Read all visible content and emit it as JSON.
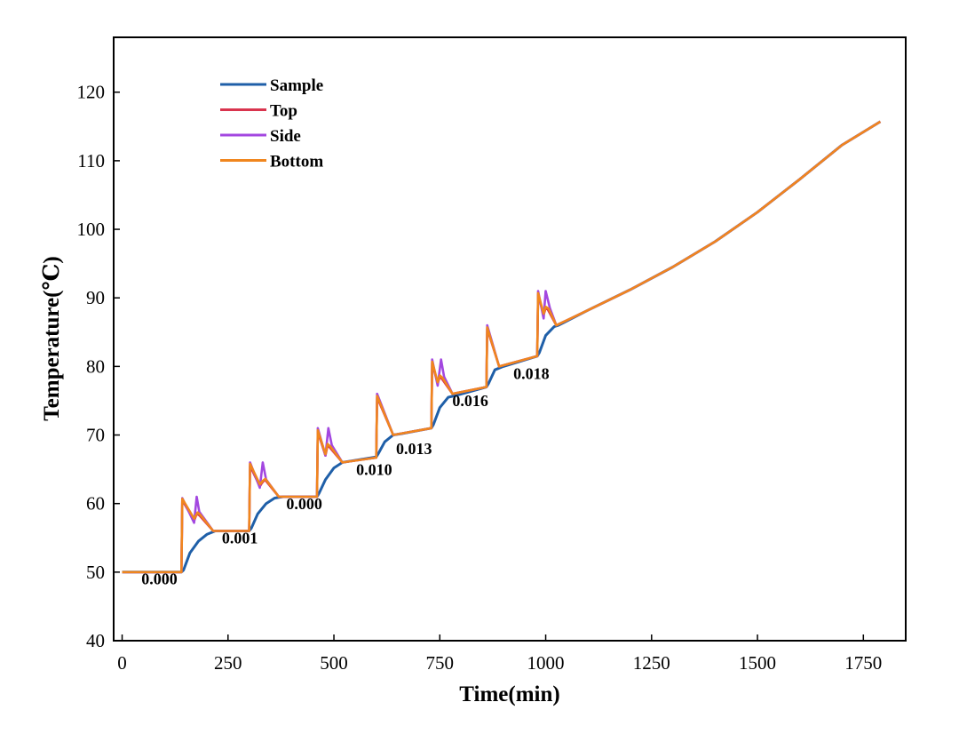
{
  "chart_data": {
    "type": "line",
    "title": "",
    "xlabel": "Time(min)",
    "ylabel": "Temperature(℃)",
    "xlim": [
      -20,
      1850
    ],
    "ylim": [
      40,
      128
    ],
    "x_ticks": [
      0,
      250,
      500,
      750,
      1000,
      1250,
      1500,
      1750
    ],
    "y_ticks": [
      40,
      50,
      60,
      70,
      80,
      90,
      100,
      110,
      120
    ],
    "grid": false,
    "legend_position": "top-left",
    "series": [
      {
        "name": "Sample",
        "color": "#1f5fa8",
        "x": [
          0,
          140,
          145,
          160,
          180,
          200,
          220,
          240,
          300,
          305,
          320,
          340,
          360,
          380,
          460,
          465,
          480,
          500,
          520,
          540,
          600,
          605,
          620,
          640,
          660,
          730,
          735,
          750,
          770,
          790,
          860,
          865,
          880,
          900,
          980,
          985,
          1000,
          1020,
          1030,
          1100,
          1200,
          1300,
          1400,
          1500,
          1600,
          1700,
          1790
        ],
        "y": [
          50,
          50,
          50.3,
          52.8,
          54.5,
          55.5,
          56,
          56,
          56,
          56.4,
          58.5,
          60,
          60.8,
          61,
          61,
          61.5,
          63.5,
          65.2,
          66,
          66.2,
          66.8,
          67.3,
          69,
          70,
          70.2,
          71,
          71.5,
          74,
          75.5,
          75.8,
          77,
          77.5,
          79.5,
          80,
          81.5,
          82,
          84.5,
          85.8,
          86,
          88.2,
          91.2,
          94.5,
          98.2,
          102.5,
          107.3,
          112.3,
          115.7
        ]
      },
      {
        "name": "Top",
        "color": "#d9344e",
        "x": [
          0,
          140,
          142,
          170,
          176,
          182,
          215,
          230,
          300,
          302,
          325,
          330,
          337,
          370,
          460,
          462,
          480,
          485,
          490,
          520,
          600,
          602,
          640,
          730,
          732,
          745,
          750,
          755,
          780,
          860,
          862,
          890,
          980,
          982,
          995,
          1000,
          1005,
          1025,
          1100,
          1200,
          1300,
          1400,
          1500,
          1600,
          1700,
          1790
        ],
        "y": [
          50,
          50,
          60.5,
          57.5,
          58.5,
          58.3,
          56,
          56,
          56,
          65.5,
          62.5,
          63,
          63.5,
          61,
          61,
          70.5,
          67,
          68.5,
          68.2,
          66,
          66.7,
          75.5,
          70,
          71,
          80.5,
          77.5,
          78.5,
          78.2,
          76,
          77,
          85.5,
          80,
          81.5,
          90.5,
          87.5,
          88.5,
          88.3,
          86,
          88.2,
          91.2,
          94.5,
          98.2,
          102.5,
          107.3,
          112.3,
          115.7
        ]
      },
      {
        "name": "Side",
        "color": "#a347e0",
        "x": [
          0,
          140,
          142,
          170,
          176,
          182,
          215,
          230,
          300,
          302,
          325,
          332,
          340,
          370,
          460,
          462,
          480,
          487,
          495,
          520,
          600,
          602,
          640,
          730,
          732,
          745,
          753,
          760,
          780,
          860,
          862,
          890,
          980,
          982,
          995,
          1000,
          1010,
          1025,
          1100,
          1200,
          1300,
          1400,
          1500,
          1600,
          1700,
          1790
        ],
        "y": [
          50,
          50,
          60.8,
          57.2,
          61,
          58.8,
          56,
          56,
          56,
          66,
          62.3,
          66,
          63.5,
          61,
          61,
          71,
          67,
          71,
          68.5,
          66,
          66.7,
          76,
          70,
          71,
          81,
          77.2,
          81,
          78.5,
          76,
          77,
          86,
          80,
          81.5,
          91,
          87,
          91,
          88.5,
          86,
          88.2,
          91.2,
          94.5,
          98.2,
          102.5,
          107.3,
          112.3,
          115.7
        ]
      },
      {
        "name": "Bottom",
        "color": "#f0861e",
        "x": [
          0,
          140,
          142,
          170,
          178,
          184,
          215,
          230,
          300,
          302,
          325,
          332,
          338,
          370,
          460,
          462,
          480,
          485,
          492,
          520,
          600,
          602,
          640,
          730,
          732,
          745,
          750,
          757,
          780,
          860,
          862,
          890,
          980,
          982,
          995,
          1000,
          1007,
          1025,
          1100,
          1200,
          1300,
          1400,
          1500,
          1600,
          1700,
          1790
        ],
        "y": [
          50,
          50,
          60.7,
          57.8,
          58.7,
          58.4,
          56,
          56,
          56,
          65.8,
          62.8,
          63.3,
          63.6,
          61,
          61,
          70.7,
          67.2,
          68.7,
          68.3,
          66,
          66.7,
          75.7,
          70,
          71,
          80.7,
          77.7,
          78.7,
          78.3,
          76,
          77,
          85.7,
          80,
          81.5,
          90.7,
          87.7,
          88.7,
          88.4,
          86,
          88.2,
          91.2,
          94.5,
          98.2,
          102.5,
          107.3,
          112.3,
          115.7
        ]
      }
    ],
    "annotations": [
      {
        "text": "0.000",
        "x": 88,
        "y": 48.2
      },
      {
        "text": "0.001",
        "x": 278,
        "y": 54.2
      },
      {
        "text": "0.000",
        "x": 430,
        "y": 59.2
      },
      {
        "text": "0.010",
        "x": 595,
        "y": 64.2
      },
      {
        "text": "0.013",
        "x": 689,
        "y": 67.2
      },
      {
        "text": "0.016",
        "x": 822,
        "y": 74.2
      },
      {
        "text": "0.018",
        "x": 966,
        "y": 78.2
      }
    ]
  }
}
